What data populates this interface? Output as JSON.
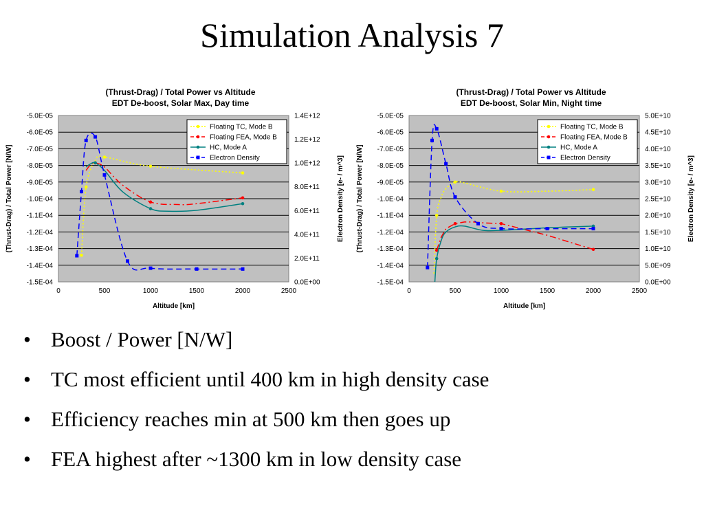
{
  "slide": {
    "title": "Simulation Analysis 7",
    "bullets": [
      "Boost / Power [N/W]",
      "TC most efficient until 400 km in high density case",
      "Efficiency reaches min at 500 km then goes up",
      "FEA highest after ~1300 km in low density case"
    ]
  },
  "colors": {
    "plot_bg": "#c0c0c0",
    "tc": "#ffff00",
    "fea": "#ff0000",
    "hc": "#008080",
    "density": "#0000ff"
  },
  "chart_data": [
    {
      "type": "line",
      "title": "(Thrust-Drag) / Total Power vs Altitude",
      "subtitle": "EDT De-boost, Solar Max, Day time",
      "xlabel": "Altitude [km]",
      "ylabel": "(Thrust-Drag) / Total Power [N/W]",
      "y2label": "Electron Density [e- / m^3]",
      "xlim": [
        0,
        2500
      ],
      "ylim": [
        -0.00015,
        -5e-05
      ],
      "y2lim": [
        0,
        1400000000000.0
      ],
      "x_ticks": [
        "0",
        "500",
        "1000",
        "1500",
        "2000",
        "2500"
      ],
      "y_ticks": [
        "-5.0E-05",
        "-6.0E-05",
        "-7.0E-05",
        "-8.0E-05",
        "-9.0E-05",
        "-1.0E-04",
        "-1.1E-04",
        "-1.2E-04",
        "-1.3E-04",
        "-1.4E-04",
        "-1.5E-04"
      ],
      "y2_ticks": [
        "1.4E+12",
        "1.2E+12",
        "1.0E+12",
        "8.0E+11",
        "6.0E+11",
        "4.0E+11",
        "2.0E+11",
        "0.0E+00"
      ],
      "grid": true,
      "legend_position": "top-right",
      "series": [
        {
          "name": "Floating TC, Mode B",
          "axis": "left",
          "color_key": "tc",
          "dash": "dot",
          "smooth": true,
          "x": [
            250,
            300,
            400,
            500,
            1000,
            2000
          ],
          "y": [
            -0.000134,
            -9.3e-05,
            -7.7e-05,
            -7.5e-05,
            -8.05e-05,
            -8.45e-05
          ],
          "markers_x": [
            250,
            300,
            500,
            1000,
            2000
          ],
          "markers_y": [
            -0.000134,
            -9.3e-05,
            -7.5e-05,
            -8.05e-05,
            -8.45e-05
          ]
        },
        {
          "name": "Floating FEA, Mode B",
          "axis": "left",
          "color_key": "fea",
          "dash": "dashdot",
          "smooth": true,
          "x": [
            300,
            350,
            400,
            500,
            700,
            1000,
            1300,
            1500,
            2000
          ],
          "y": [
            -8.3e-05,
            -7.95e-05,
            -7.85e-05,
            -8.1e-05,
            -9.2e-05,
            -0.000102,
            -0.0001035,
            -0.000103,
            -9.95e-05
          ],
          "markers_x": [
            400,
            1000,
            2000
          ],
          "markers_y": [
            -7.85e-05,
            -0.000102,
            -9.95e-05
          ]
        },
        {
          "name": "HC, Mode A",
          "axis": "left",
          "color_key": "hc",
          "dash": "solid",
          "smooth": true,
          "x": [
            300,
            350,
            400,
            500,
            700,
            1000,
            1200,
            1500,
            2000
          ],
          "y": [
            -8.1e-05,
            -7.9e-05,
            -7.85e-05,
            -8.3e-05,
            -9.6e-05,
            -0.000106,
            -0.0001075,
            -0.000107,
            -0.000103
          ],
          "markers_x": [
            400,
            1000,
            2000
          ],
          "markers_y": [
            -7.85e-05,
            -0.000106,
            -0.000103
          ]
        },
        {
          "name": "Electron Density",
          "axis": "right",
          "color_key": "density",
          "dash": "dash",
          "smooth": true,
          "x": [
            200,
            250,
            300,
            400,
            500,
            750,
            1000,
            1500,
            2000
          ],
          "y": [
            220000000000.0,
            760000000000.0,
            1190000000000.0,
            1220000000000.0,
            900000000000.0,
            175000000000.0,
            115000000000.0,
            108000000000.0,
            108000000000.0
          ],
          "markers_x": [
            200,
            250,
            300,
            400,
            500,
            750,
            1000,
            1500,
            2000
          ],
          "markers_y": [
            220000000000.0,
            760000000000.0,
            1190000000000.0,
            1220000000000.0,
            900000000000.0,
            175000000000.0,
            115000000000.0,
            108000000000.0,
            108000000000.0
          ]
        }
      ]
    },
    {
      "type": "line",
      "title": "(Thrust-Drag) / Total Power vs Altitude",
      "subtitle": "EDT De-boost, Solar Min, Night time",
      "xlabel": "Altitude [km]",
      "ylabel": "(Thrust-Drag) / Total Power [N/W]",
      "y2label": "Electron Density [e- / m^3]",
      "xlim": [
        0,
        2500
      ],
      "ylim": [
        -0.00015,
        -5e-05
      ],
      "y2lim": [
        0,
        50000000000.0
      ],
      "x_ticks": [
        "0",
        "500",
        "1000",
        "1500",
        "2000",
        "2500"
      ],
      "y_ticks": [
        "-5.0E-05",
        "-6.0E-05",
        "-7.0E-05",
        "-8.0E-05",
        "-9.0E-05",
        "-1.0E-04",
        "-1.1E-04",
        "-1.2E-04",
        "-1.3E-04",
        "-1.4E-04",
        "-1.5E-04"
      ],
      "y2_ticks": [
        "5.0E+10",
        "4.5E+10",
        "4.0E+10",
        "3.5E+10",
        "3.0E+10",
        "2.5E+10",
        "2.0E+10",
        "1.5E+10",
        "1.0E+10",
        "5.0E+09",
        "0.0E+00"
      ],
      "grid": true,
      "legend_position": "top-right",
      "series": [
        {
          "name": "Floating TC, Mode B",
          "axis": "left",
          "color_key": "tc",
          "dash": "dot",
          "smooth": true,
          "x": [
            270,
            300,
            350,
            400,
            500,
            600,
            1000,
            1500,
            2000
          ],
          "y": [
            -0.000145,
            -0.00011,
            -9.9e-05,
            -9.4e-05,
            -9e-05,
            -9.05e-05,
            -9.55e-05,
            -9.55e-05,
            -9.45e-05
          ],
          "markers_x": [
            300,
            500,
            1000,
            2000
          ],
          "markers_y": [
            -0.00011,
            -9e-05,
            -9.55e-05,
            -9.45e-05
          ]
        },
        {
          "name": "Floating FEA, Mode B",
          "axis": "left",
          "color_key": "fea",
          "dash": "dashdot",
          "smooth": false,
          "x": [
            300,
            350,
            400,
            500,
            600,
            700,
            800,
            1000,
            1500,
            2000
          ],
          "y": [
            -0.000131,
            -0.000123,
            -0.000118,
            -0.000115,
            -0.000114,
            -0.000114,
            -0.0001145,
            -0.000115,
            -0.000122,
            -0.0001305
          ],
          "markers_x": [
            300,
            500,
            1000,
            2000
          ],
          "markers_y": [
            -0.000131,
            -0.000115,
            -0.000115,
            -0.0001305
          ]
        },
        {
          "name": "HC, Mode A",
          "axis": "left",
          "color_key": "hc",
          "dash": "solid",
          "smooth": true,
          "x": [
            280,
            300,
            350,
            400,
            500,
            600,
            800,
            1000,
            1500,
            2000
          ],
          "y": [
            -0.00015,
            -0.000136,
            -0.000125,
            -0.00012,
            -0.000117,
            -0.0001165,
            -0.000119,
            -0.000119,
            -0.0001175,
            -0.0001165
          ],
          "markers_x": [
            300,
            2000
          ],
          "markers_y": [
            -0.000136,
            -0.0001165
          ]
        },
        {
          "name": "Electron Density",
          "axis": "right",
          "color_key": "density",
          "dash": "dash",
          "smooth": true,
          "x": [
            200,
            250,
            300,
            400,
            500,
            750,
            1000,
            1500,
            2000
          ],
          "y": [
            4300000000.0,
            42500000000.0,
            46000000000.0,
            35500000000.0,
            25500000000.0,
            17500000000.0,
            16000000000.0,
            16000000000.0,
            16000000000.0
          ],
          "markers_x": [
            200,
            250,
            300,
            400,
            500,
            750,
            1000,
            1500,
            2000
          ],
          "markers_y": [
            4300000000.0,
            42500000000.0,
            46000000000.0,
            35500000000.0,
            25500000000.0,
            17500000000.0,
            16000000000.0,
            16000000000.0,
            16000000000.0
          ]
        }
      ]
    }
  ]
}
